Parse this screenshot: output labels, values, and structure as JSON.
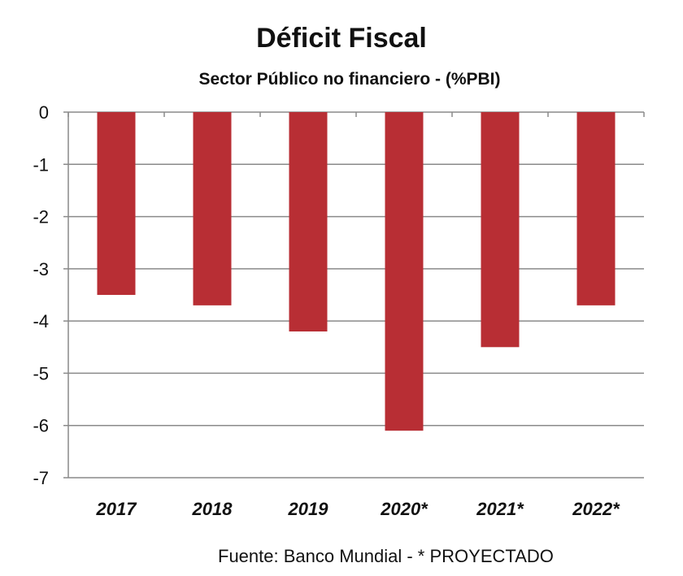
{
  "chart_data": {
    "type": "bar",
    "title": "Déficit Fiscal",
    "subtitle": "Sector Público no financiero - (%PBI)",
    "categories": [
      "2017",
      "2018",
      "2019",
      "2020*",
      "2021*",
      "2022*"
    ],
    "values": [
      -3.5,
      -3.7,
      -4.2,
      -6.1,
      -4.5,
      -3.7
    ],
    "xlabel": "",
    "ylabel": "",
    "ylim": [
      -7,
      0
    ],
    "yticks": [
      "0",
      "-1",
      "-2",
      "-3",
      "-4",
      "-5",
      "-6",
      "-7"
    ],
    "grid": true,
    "bar_color": "#b82e34",
    "source": "Fuente: Banco Mundial - * PROYECTADO"
  }
}
